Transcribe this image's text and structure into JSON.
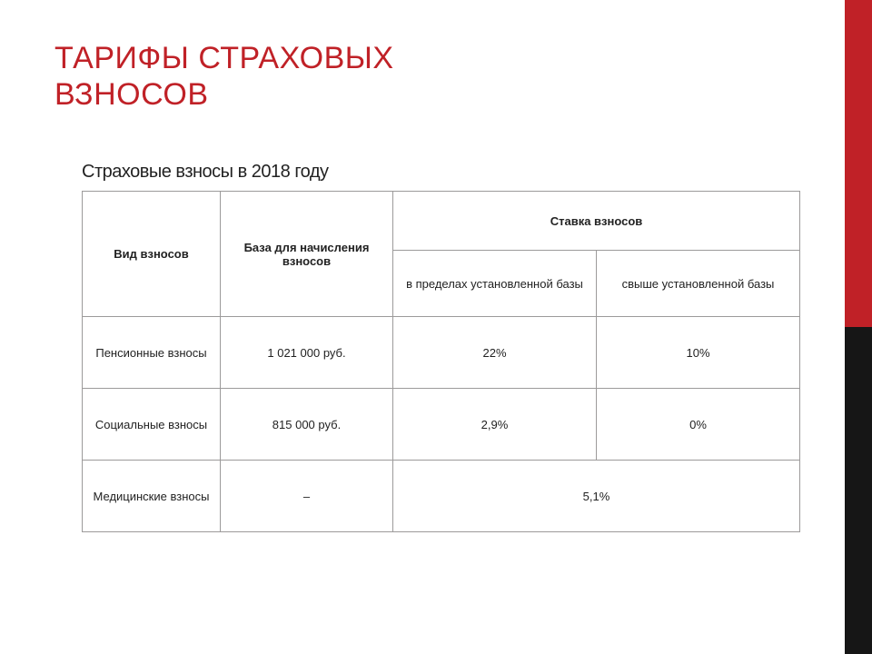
{
  "slide": {
    "title": "ТАРИФЫ СТРАХОВЫХ\nВЗНОСОВ",
    "title_color": "#c02127",
    "subtitle": "Страховые взносы в 2018 году",
    "sidebar": {
      "red": "#c02127",
      "black": "#161616"
    }
  },
  "table": {
    "border_color": "#9c9a9a",
    "text_color": "#222222",
    "header_fontsize": 13,
    "cell_fontsize": 13,
    "columns": {
      "col1": "Вид взносов",
      "col2": "База для начисления взносов",
      "col3_group": "Ставка взносов",
      "col3_sub1": "в пределах установленной базы",
      "col3_sub2": "свыше установленной базы"
    },
    "rows": {
      "r1": {
        "kind": "Пенсионные взносы",
        "base": "1 021 000 руб.",
        "within": "22%",
        "above": "10%"
      },
      "r2": {
        "kind": "Социальные взносы",
        "base": "815 000 руб.",
        "within": "2,9%",
        "above": "0%"
      },
      "r3": {
        "kind": "Медицинские взносы",
        "base": "–",
        "rate_merged": "5,1%"
      }
    }
  }
}
